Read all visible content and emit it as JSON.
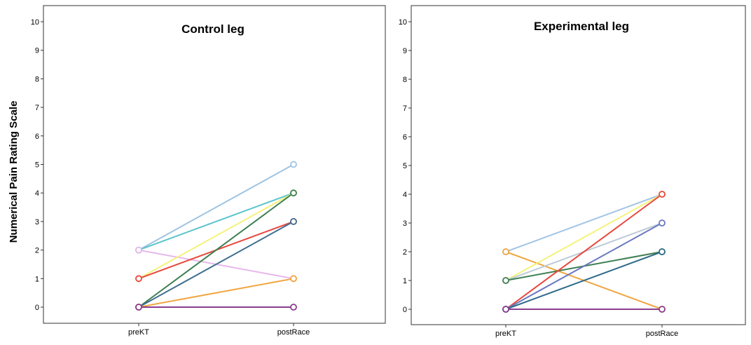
{
  "ylabel": "Numerical Pain Rating Scale",
  "chart_data": [
    {
      "type": "line",
      "title": "Control leg",
      "categories": [
        "preKT",
        "postRace"
      ],
      "ylim": [
        0,
        10
      ],
      "yticks": [
        0,
        1,
        2,
        3,
        4,
        5,
        6,
        7,
        8,
        9,
        10
      ],
      "grid": false,
      "series": [
        {
          "values": [
            2,
            5
          ],
          "color": "#9ec4e3"
        },
        {
          "values": [
            2,
            4
          ],
          "color": "#5bc4cc"
        },
        {
          "values": [
            2,
            1
          ],
          "color": "#e6b8ea"
        },
        {
          "values": [
            1,
            4
          ],
          "color": "#f5f27a"
        },
        {
          "values": [
            1,
            3
          ],
          "color": "#e8473d"
        },
        {
          "values": [
            0,
            4
          ],
          "color": "#3e7f52"
        },
        {
          "values": [
            0,
            3
          ],
          "color": "#3f6f91"
        },
        {
          "values": [
            0,
            1
          ],
          "color": "#f0a640"
        },
        {
          "values": [
            0,
            0
          ],
          "color": "#8a3d8f"
        }
      ]
    },
    {
      "type": "line",
      "title": "Experimental leg",
      "categories": [
        "preKT",
        "postRace"
      ],
      "ylim": [
        0,
        10
      ],
      "yticks": [
        0,
        1,
        2,
        3,
        4,
        5,
        6,
        7,
        8,
        9,
        10
      ],
      "grid": false,
      "series": [
        {
          "values": [
            2,
            4
          ],
          "color": "#a4c4e6"
        },
        {
          "values": [
            2,
            0
          ],
          "color": "#f0a640"
        },
        {
          "values": [
            1,
            4
          ],
          "color": "#f5f27a"
        },
        {
          "values": [
            1,
            3
          ],
          "color": "#bccbd8"
        },
        {
          "values": [
            1,
            2
          ],
          "color": "#3e7f52"
        },
        {
          "values": [
            0,
            4
          ],
          "color": "#e8473d"
        },
        {
          "values": [
            0,
            3
          ],
          "color": "#6a78c0"
        },
        {
          "values": [
            0,
            2
          ],
          "color": "#2f6a8a"
        },
        {
          "values": [
            0,
            0
          ],
          "color": "#8a3d8f"
        }
      ]
    }
  ]
}
